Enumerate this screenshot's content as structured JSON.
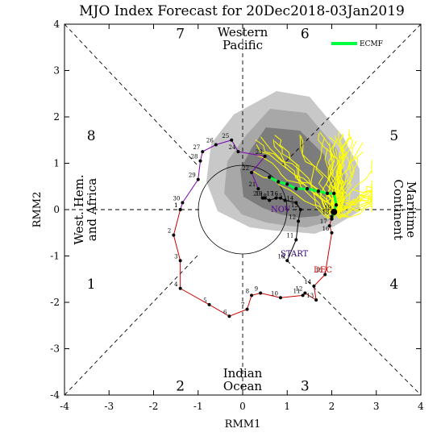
{
  "chart_data": {
    "type": "scatter",
    "title": "MJO Index Forecast for 20Dec2018-03Jan2019",
    "xlabel": "RMM1",
    "ylabel": "RMM2",
    "xlim": [
      -4,
      4
    ],
    "ylim": [
      -4,
      4
    ],
    "xticks": [
      -4,
      -3,
      -2,
      -1,
      0,
      1,
      2,
      3,
      4
    ],
    "yticks": [
      -4,
      -3,
      -2,
      -1,
      0,
      1,
      2,
      3,
      4
    ],
    "phase_numbers": [
      {
        "label": "1",
        "x": -3.4,
        "y": -1.6
      },
      {
        "label": "2",
        "x": -1.4,
        "y": -3.8
      },
      {
        "label": "3",
        "x": 1.4,
        "y": -3.8
      },
      {
        "label": "4",
        "x": 3.4,
        "y": -1.6
      },
      {
        "label": "5",
        "x": 3.4,
        "y": 1.6
      },
      {
        "label": "6",
        "x": 1.4,
        "y": 3.8
      },
      {
        "label": "7",
        "x": -1.4,
        "y": 3.8
      },
      {
        "label": "8",
        "x": -3.4,
        "y": 1.6
      }
    ],
    "region_labels": {
      "top": [
        "Western",
        "Pacific"
      ],
      "bottom": [
        "Indian",
        "Ocean"
      ],
      "left": [
        "West. Hem.",
        "and Africa"
      ],
      "right": [
        "Maritime",
        "Continent"
      ]
    },
    "legend": {
      "label": "ECMF",
      "color": "#00ff40",
      "position": "top-right"
    },
    "annotations": {
      "start": "START",
      "nov": "NOV",
      "dec": "DEC"
    },
    "colors": {
      "dec_track": "#cc0000",
      "nov_track": "#7a00b0",
      "members": "#ffff00",
      "mean": "#00ff40",
      "plume_outer": "#c8c8c8",
      "plume_mid": "#a8a8a8",
      "plume_inner": "#7c7c7c"
    },
    "series": [
      {
        "name": "NOV",
        "labels": [
          "21",
          "22",
          "23",
          "24",
          "25",
          "26",
          "27",
          "28",
          "29",
          "30",
          "1"
        ],
        "points": [
          [
            0.35,
            0.45
          ],
          [
            0.2,
            0.8
          ],
          [
            0.5,
            1.15
          ],
          [
            -0.1,
            1.25
          ],
          [
            -0.25,
            1.5
          ],
          [
            -0.6,
            1.4
          ],
          [
            -0.9,
            1.25
          ],
          [
            -0.95,
            1.05
          ],
          [
            -1.0,
            0.65
          ],
          [
            -1.35,
            0.15
          ],
          [
            -1.4,
            0.0
          ]
        ]
      },
      {
        "name": "DEC",
        "labels": [
          "1",
          "2",
          "3",
          "4",
          "5",
          "6",
          "7",
          "8",
          "9",
          "10",
          "11",
          "12",
          "13",
          "14",
          "15",
          "16",
          "17",
          "18",
          "19"
        ],
        "points": [
          [
            -1.4,
            0.0
          ],
          [
            -1.55,
            -0.55
          ],
          [
            -1.4,
            -1.1
          ],
          [
            -1.4,
            -1.7
          ],
          [
            -0.75,
            -2.05
          ],
          [
            -0.3,
            -2.3
          ],
          [
            0.1,
            -2.15
          ],
          [
            0.2,
            -1.85
          ],
          [
            0.4,
            -1.8
          ],
          [
            0.85,
            -1.9
          ],
          [
            1.35,
            -1.85
          ],
          [
            1.4,
            -1.8
          ],
          [
            1.65,
            -1.95
          ],
          [
            1.6,
            -1.65
          ],
          [
            1.85,
            -1.4
          ],
          [
            2.0,
            -0.5
          ],
          [
            1.95,
            -0.35
          ],
          [
            2.0,
            -0.15
          ],
          [
            2.05,
            -0.05
          ]
        ]
      },
      {
        "name": "Forecast",
        "labels": [
          "10",
          "11",
          "12",
          "13",
          "14",
          "15",
          "16",
          "17",
          "18",
          "19",
          "20"
        ],
        "points": [
          [
            1.0,
            -1.1
          ],
          [
            1.2,
            -0.65
          ],
          [
            1.25,
            -0.25
          ],
          [
            1.3,
            0.0
          ],
          [
            1.2,
            0.15
          ],
          [
            0.95,
            0.2
          ],
          [
            0.85,
            0.25
          ],
          [
            0.75,
            0.25
          ],
          [
            0.6,
            0.2
          ],
          [
            0.5,
            0.25
          ],
          [
            0.45,
            0.25
          ]
        ]
      },
      {
        "name": "ECMF",
        "points": [
          [
            2.0,
            -0.2
          ],
          [
            2.1,
            0.1
          ],
          [
            2.05,
            0.35
          ],
          [
            1.9,
            0.35
          ],
          [
            1.7,
            0.4
          ],
          [
            1.45,
            0.45
          ],
          [
            1.2,
            0.45
          ],
          [
            1.0,
            0.55
          ],
          [
            0.8,
            0.6
          ],
          [
            0.6,
            0.7
          ]
        ]
      }
    ]
  }
}
